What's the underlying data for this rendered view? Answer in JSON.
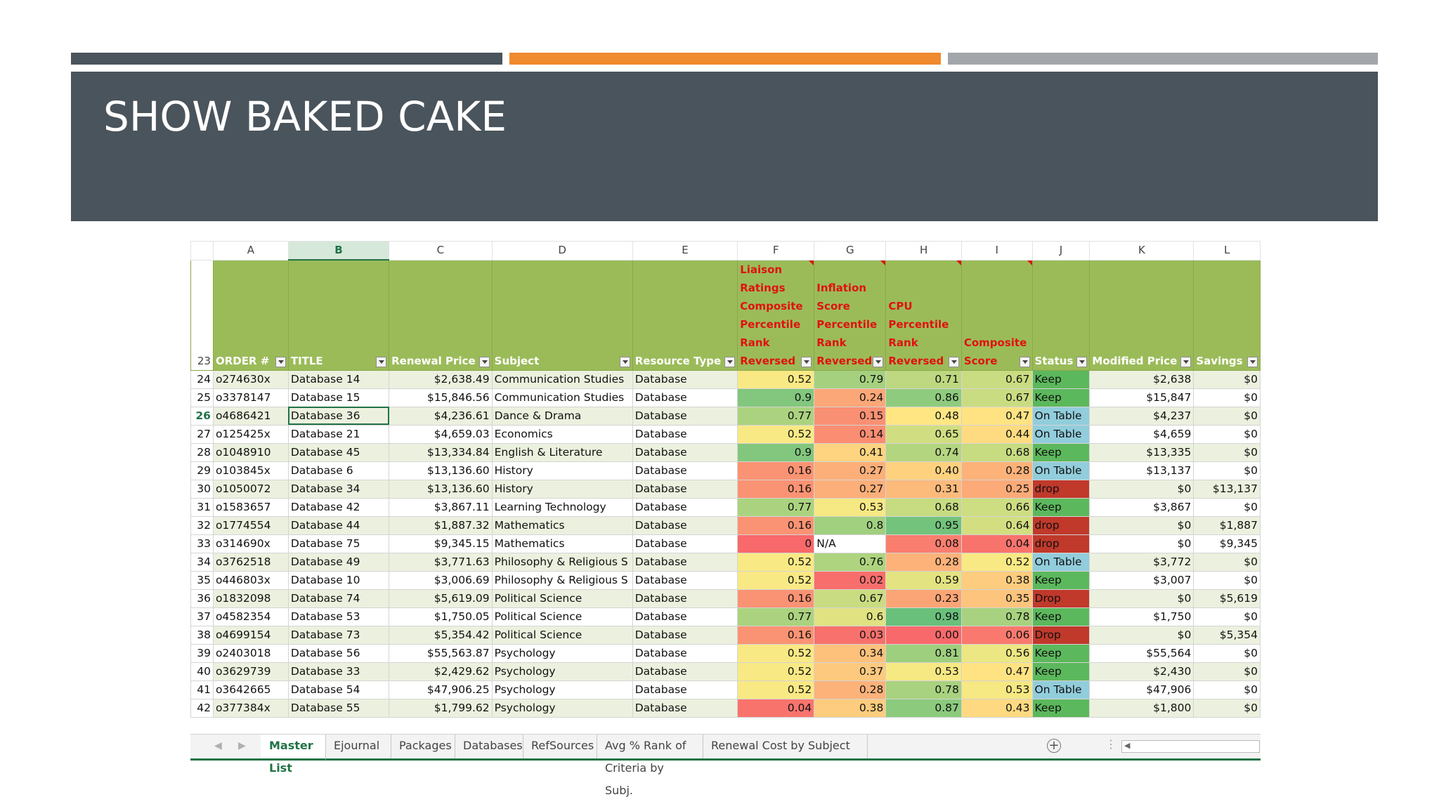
{
  "slide": {
    "title": "SHOW BAKED CAKE"
  },
  "sheet": {
    "columns": [
      "A",
      "B",
      "C",
      "D",
      "E",
      "F",
      "G",
      "H",
      "I",
      "J",
      "K",
      "L"
    ],
    "selected_column": "B",
    "selected_row": "26",
    "header_row": "23",
    "headers": [
      {
        "lines": [
          "ORDER #"
        ],
        "filter": true,
        "red": false
      },
      {
        "lines": [
          "TITLE"
        ],
        "filter": true,
        "red": false
      },
      {
        "lines": [
          "Renewal Price"
        ],
        "filter": true,
        "red": false
      },
      {
        "lines": [
          "Subject"
        ],
        "filter": true,
        "red": false
      },
      {
        "lines": [
          "Resource Type"
        ],
        "filter": true,
        "red": false
      },
      {
        "lines": [
          "Liaison",
          "Ratings",
          "Composite",
          "Percentile",
          "Rank",
          "Reversed"
        ],
        "filter": true,
        "red": true
      },
      {
        "lines": [
          "Inflation",
          "Score",
          "Percentile",
          "Rank",
          "Reversed"
        ],
        "filter": true,
        "red": true
      },
      {
        "lines": [
          "CPU",
          "Percentile",
          "Rank",
          "Reversed"
        ],
        "filter": true,
        "red": true
      },
      {
        "lines": [
          "Composite",
          "Score"
        ],
        "filter": true,
        "red": true
      },
      {
        "lines": [
          "Status"
        ],
        "filter": true,
        "red": false
      },
      {
        "lines": [
          "Modified Price"
        ],
        "filter": true,
        "red": false
      },
      {
        "lines": [
          "Savings"
        ],
        "filter": true,
        "red": false
      }
    ],
    "rows": [
      {
        "n": "24",
        "order": "o274630x",
        "title": "Database 14",
        "price": "$2,638.49",
        "subject": "Communication Studies",
        "type": "Database",
        "f": "0.52",
        "g": "0.79",
        "h": "0.71",
        "i": "0.67",
        "status": "Keep",
        "mod": "$2,638",
        "sav": "$0"
      },
      {
        "n": "25",
        "order": "o3378147",
        "title": "Database 15",
        "price": "$15,846.56",
        "subject": "Communication Studies",
        "type": "Database",
        "f": "0.9",
        "g": "0.24",
        "h": "0.86",
        "i": "0.67",
        "status": "Keep",
        "mod": "$15,847",
        "sav": "$0"
      },
      {
        "n": "26",
        "order": "o4686421",
        "title": "Database 36",
        "price": "$4,236.61",
        "subject": "Dance & Drama",
        "type": "Database",
        "f": "0.77",
        "g": "0.15",
        "h": "0.48",
        "i": "0.47",
        "status": "On Table",
        "mod": "$4,237",
        "sav": "$0"
      },
      {
        "n": "27",
        "order": "o125425x",
        "title": "Database 21",
        "price": "$4,659.03",
        "subject": "Economics",
        "type": "Database",
        "f": "0.52",
        "g": "0.14",
        "h": "0.65",
        "i": "0.44",
        "status": "On Table",
        "mod": "$4,659",
        "sav": "$0"
      },
      {
        "n": "28",
        "order": "o1048910",
        "title": "Database 45",
        "price": "$13,334.84",
        "subject": "English & Literature",
        "type": "Database",
        "f": "0.9",
        "g": "0.41",
        "h": "0.74",
        "i": "0.68",
        "status": "Keep",
        "mod": "$13,335",
        "sav": "$0"
      },
      {
        "n": "29",
        "order": "o103845x",
        "title": "Database 6",
        "price": "$13,136.60",
        "subject": "History",
        "type": "Database",
        "f": "0.16",
        "g": "0.27",
        "h": "0.40",
        "i": "0.28",
        "status": "On Table",
        "mod": "$13,137",
        "sav": "$0"
      },
      {
        "n": "30",
        "order": "o1050072",
        "title": "Database 34",
        "price": "$13,136.60",
        "subject": "History",
        "type": "Database",
        "f": "0.16",
        "g": "0.27",
        "h": "0.31",
        "i": "0.25",
        "status": "drop",
        "mod": "$0",
        "sav": "$13,137"
      },
      {
        "n": "31",
        "order": "o1583657",
        "title": "Database 42",
        "price": "$3,867.11",
        "subject": "Learning Technology",
        "type": "Database",
        "f": "0.77",
        "g": "0.53",
        "h": "0.68",
        "i": "0.66",
        "status": "Keep",
        "mod": "$3,867",
        "sav": "$0"
      },
      {
        "n": "32",
        "order": "o1774554",
        "title": "Database 44",
        "price": "$1,887.32",
        "subject": "Mathematics",
        "type": "Database",
        "f": "0.16",
        "g": "0.8",
        "h": "0.95",
        "i": "0.64",
        "status": "drop",
        "mod": "$0",
        "sav": "$1,887"
      },
      {
        "n": "33",
        "order": "o314690x",
        "title": "Database 75",
        "price": "$9,345.15",
        "subject": "Mathematics",
        "type": "Database",
        "f": "0",
        "g": "N/A",
        "h": "0.08",
        "i": "0.04",
        "status": "drop",
        "mod": "$0",
        "sav": "$9,345"
      },
      {
        "n": "34",
        "order": "o3762518",
        "title": "Database 49",
        "price": "$3,771.63",
        "subject": "Philosophy & Religious S",
        "type": "Database",
        "f": "0.52",
        "g": "0.76",
        "h": "0.28",
        "i": "0.52",
        "status": "On Table",
        "mod": "$3,772",
        "sav": "$0"
      },
      {
        "n": "35",
        "order": "o446803x",
        "title": "Database 10",
        "price": "$3,006.69",
        "subject": "Philosophy & Religious S",
        "type": "Database",
        "f": "0.52",
        "g": "0.02",
        "h": "0.59",
        "i": "0.38",
        "status": "Keep",
        "mod": "$3,007",
        "sav": "$0"
      },
      {
        "n": "36",
        "order": "o1832098",
        "title": "Database 74",
        "price": "$5,619.09",
        "subject": "Political Science",
        "type": "Database",
        "f": "0.16",
        "g": "0.67",
        "h": "0.23",
        "i": "0.35",
        "status": "Drop",
        "mod": "$0",
        "sav": "$5,619"
      },
      {
        "n": "37",
        "order": "o4582354",
        "title": "Database 53",
        "price": "$1,750.05",
        "subject": "Political Science",
        "type": "Database",
        "f": "0.77",
        "g": "0.6",
        "h": "0.98",
        "i": "0.78",
        "status": "Keep",
        "mod": "$1,750",
        "sav": "$0"
      },
      {
        "n": "38",
        "order": "o4699154",
        "title": "Database 73",
        "price": "$5,354.42",
        "subject": "Political Science",
        "type": "Database",
        "f": "0.16",
        "g": "0.03",
        "h": "0.00",
        "i": "0.06",
        "status": "Drop",
        "mod": "$0",
        "sav": "$5,354"
      },
      {
        "n": "39",
        "order": "o2403018",
        "title": "Database 56",
        "price": "$55,563.87",
        "subject": "Psychology",
        "type": "Database",
        "f": "0.52",
        "g": "0.34",
        "h": "0.81",
        "i": "0.56",
        "status": "Keep",
        "mod": "$55,564",
        "sav": "$0"
      },
      {
        "n": "40",
        "order": "o3629739",
        "title": "Database 33",
        "price": "$2,429.62",
        "subject": "Psychology",
        "type": "Database",
        "f": "0.52",
        "g": "0.37",
        "h": "0.53",
        "i": "0.47",
        "status": "Keep",
        "mod": "$2,430",
        "sav": "$0"
      },
      {
        "n": "41",
        "order": "o3642665",
        "title": "Database 54",
        "price": "$47,906.25",
        "subject": "Psychology",
        "type": "Database",
        "f": "0.52",
        "g": "0.28",
        "h": "0.78",
        "i": "0.53",
        "status": "On Table",
        "mod": "$47,906",
        "sav": "$0"
      },
      {
        "n": "42",
        "order": "o377384x",
        "title": "Database 55",
        "price": "$1,799.62",
        "subject": "Psychology",
        "type": "Database",
        "f": "0.04",
        "g": "0.38",
        "h": "0.87",
        "i": "0.43",
        "status": "Keep",
        "mod": "$1,800",
        "sav": "$0"
      }
    ],
    "status_colors": {
      "Keep": "#5cb85c",
      "On Table": "#92cddc",
      "drop": "#c0392b",
      "Drop": "#c0392b"
    },
    "tabs": [
      "Master List",
      "Ejournal",
      "Packages",
      "Databases",
      "RefSources",
      "Avg % Rank of Criteria by Subj.",
      "Renewal Cost by Subject"
    ],
    "active_tab": "Master List"
  }
}
